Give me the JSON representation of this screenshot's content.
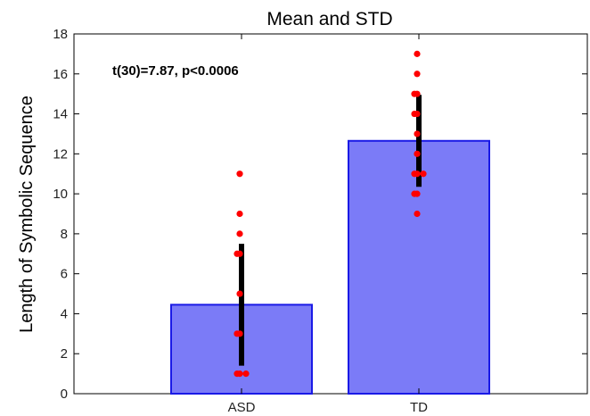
{
  "chart_data": {
    "type": "bar",
    "title": "Mean and STD",
    "xlabel": "",
    "ylabel": "Length of Symbolic Sequence",
    "categories": [
      "ASD",
      "TD"
    ],
    "values": [
      4.45,
      12.65
    ],
    "std": [
      3.05,
      2.3
    ],
    "ylim": [
      0,
      18
    ],
    "yticks": [
      0,
      2,
      4,
      6,
      8,
      10,
      12,
      14,
      16,
      18
    ],
    "points": [
      [
        11,
        9,
        8,
        7,
        7,
        5,
        3,
        3,
        1,
        1,
        1
      ],
      [
        17,
        16,
        15,
        15,
        14,
        14,
        13,
        12,
        11,
        11,
        11,
        10,
        10,
        9
      ]
    ],
    "annotation": "t(30)=7.87, p<0.0006",
    "grid": false,
    "colors": {
      "bar_fill": "#7b7bf7",
      "bar_edge": "#1a1ae6",
      "errorbar": "#000000",
      "points": "#ff0000"
    }
  }
}
